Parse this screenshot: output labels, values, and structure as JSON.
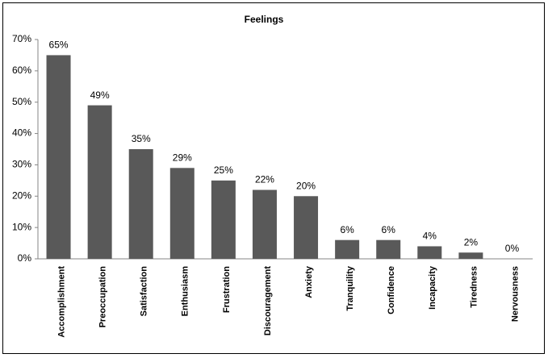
{
  "chart_data": {
    "type": "bar",
    "title": "Feelings",
    "categories": [
      "Accomplishment",
      "Preoccupation",
      "Satisfaction",
      "Enthusiasm",
      "Frustration",
      "Discouragement",
      "Anxiety",
      "Tranquility",
      "Confidence",
      "Incapacity",
      "Tiredness",
      "Nervousness"
    ],
    "values": [
      65,
      49,
      35,
      29,
      25,
      22,
      20,
      6,
      6,
      4,
      2,
      0
    ],
    "value_labels": [
      "65%",
      "49%",
      "35%",
      "29%",
      "25%",
      "22%",
      "20%",
      "6%",
      "6%",
      "4%",
      "2%",
      "0%"
    ],
    "color": "#595959",
    "ylim": [
      0,
      70
    ],
    "yticks": [
      {
        "value": 0,
        "label": "0%"
      },
      {
        "value": 10,
        "label": "10%"
      },
      {
        "value": 20,
        "label": "20%"
      },
      {
        "value": 30,
        "label": "30%"
      },
      {
        "value": 40,
        "label": "40%"
      },
      {
        "value": 50,
        "label": "50%"
      },
      {
        "value": 60,
        "label": "60%"
      },
      {
        "value": 70,
        "label": "70%"
      }
    ],
    "grid": false
  }
}
